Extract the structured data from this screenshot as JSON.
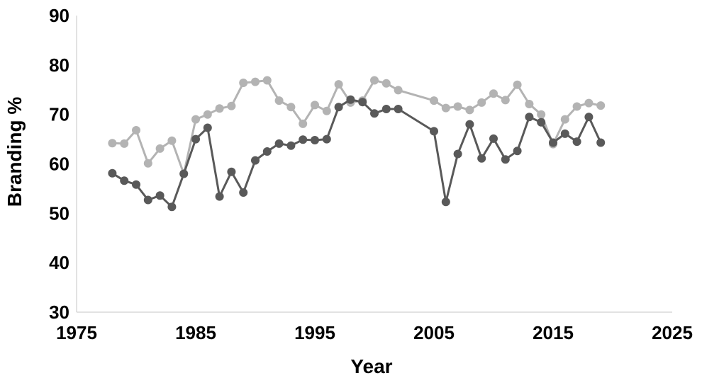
{
  "chart_data": {
    "type": "line",
    "title": "",
    "xlabel": "Year",
    "ylabel": "Branding %",
    "xlim": [
      1975,
      2025
    ],
    "ylim": [
      30,
      90
    ],
    "x_ticks": [
      1975,
      1985,
      1995,
      2005,
      2015,
      2025
    ],
    "y_ticks": [
      30,
      40,
      50,
      60,
      70,
      80,
      90
    ],
    "grid": false,
    "legend": "none",
    "series": [
      {
        "color": "#b3b3b3",
        "points": [
          [
            1978,
            64.2
          ],
          [
            1979,
            64.1
          ],
          [
            1980,
            66.8
          ],
          [
            1981,
            60.1
          ],
          [
            1982,
            63.1
          ],
          [
            1983,
            64.7
          ],
          [
            1984,
            58.0
          ],
          [
            1985,
            69.0
          ],
          [
            1986,
            70.0
          ],
          [
            1987,
            71.2
          ],
          [
            1988,
            71.7
          ],
          [
            1989,
            76.4
          ],
          [
            1990,
            76.6
          ],
          [
            1991,
            76.9
          ],
          [
            1992,
            72.8
          ],
          [
            1993,
            71.5
          ],
          [
            1994,
            68.1
          ],
          [
            1995,
            71.9
          ],
          [
            1996,
            70.7
          ],
          [
            1997,
            76.1
          ],
          [
            1998,
            72.4
          ],
          [
            1999,
            72.8
          ],
          [
            2000,
            76.9
          ],
          [
            2001,
            76.3
          ],
          [
            2002,
            74.9
          ],
          [
            2005,
            72.8
          ],
          [
            2006,
            71.3
          ],
          [
            2007,
            71.6
          ],
          [
            2008,
            70.9
          ],
          [
            2009,
            72.4
          ],
          [
            2010,
            74.2
          ],
          [
            2011,
            72.9
          ],
          [
            2012,
            76.0
          ],
          [
            2013,
            72.1
          ],
          [
            2014,
            70.0
          ],
          [
            2015,
            64.0
          ],
          [
            2016,
            69.0
          ],
          [
            2017,
            71.6
          ],
          [
            2018,
            72.3
          ],
          [
            2019,
            71.8
          ]
        ]
      },
      {
        "color": "#595959",
        "points": [
          [
            1978,
            58.1
          ],
          [
            1979,
            56.6
          ],
          [
            1980,
            55.8
          ],
          [
            1981,
            52.7
          ],
          [
            1982,
            53.6
          ],
          [
            1983,
            51.3
          ],
          [
            1984,
            58.0
          ],
          [
            1985,
            65.0
          ],
          [
            1986,
            67.3
          ],
          [
            1987,
            53.4
          ],
          [
            1988,
            58.4
          ],
          [
            1989,
            54.2
          ],
          [
            1990,
            60.7
          ],
          [
            1991,
            62.5
          ],
          [
            1992,
            64.1
          ],
          [
            1993,
            63.7
          ],
          [
            1994,
            64.9
          ],
          [
            1995,
            64.8
          ],
          [
            1996,
            65.0
          ],
          [
            1997,
            71.5
          ],
          [
            1998,
            73.0
          ],
          [
            1999,
            72.5
          ],
          [
            2000,
            70.2
          ],
          [
            2001,
            71.1
          ],
          [
            2002,
            71.1
          ],
          [
            2005,
            66.6
          ],
          [
            2006,
            52.3
          ],
          [
            2007,
            62.0
          ],
          [
            2008,
            68.0
          ],
          [
            2009,
            61.1
          ],
          [
            2010,
            65.1
          ],
          [
            2011,
            60.9
          ],
          [
            2012,
            62.6
          ],
          [
            2013,
            69.5
          ],
          [
            2014,
            68.4
          ],
          [
            2015,
            64.3
          ],
          [
            2016,
            66.1
          ],
          [
            2017,
            64.5
          ],
          [
            2018,
            69.5
          ],
          [
            2019,
            64.3
          ]
        ]
      }
    ]
  }
}
